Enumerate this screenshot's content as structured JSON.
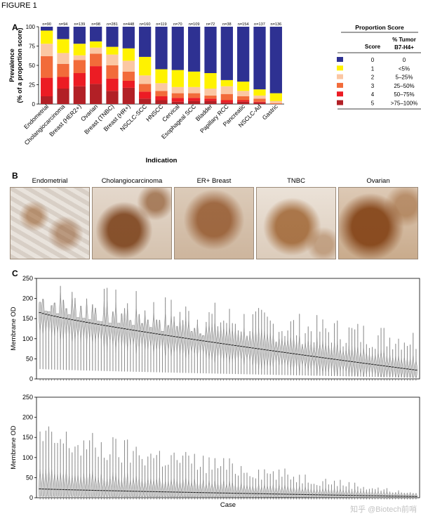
{
  "figure": {
    "title": "FIGURE 1"
  },
  "panels": {
    "a": "A",
    "b": "B",
    "c": "C"
  },
  "chart_data": [
    {
      "type": "bar",
      "stacked": true,
      "title": "",
      "xlabel": "Indication",
      "ylabel": "Prevalence",
      "ylabel2": "(% of a proportion score)",
      "ylim": [
        0,
        100
      ],
      "yticks": [
        0,
        25,
        50,
        75,
        100
      ],
      "categories": [
        "Endometrial",
        "Cholangiocarcinoma",
        "Breast (HER2+)",
        "Ovarian",
        "Breast (TNBC)",
        "Breast (HR+)",
        "NSCLC-SCC",
        "HNSCC",
        "Cervical",
        "Esophageal SCC",
        "Bladder",
        "Papillary RCC",
        "Pancreatic",
        "NSCLC-Ad",
        "Gastric"
      ],
      "n_labels": [
        "n=90",
        "n=94",
        "n=139",
        "n=98",
        "n=281",
        "n=448",
        "n=160",
        "n=119",
        "n=70",
        "n=109",
        "n=72",
        "n=38",
        "n=154",
        "n=137",
        "n=136"
      ],
      "series": [
        {
          "name": "5",
          "color": "#b22026",
          "values": [
            10,
            20,
            23,
            26,
            17,
            21,
            7,
            5,
            3,
            4,
            4,
            2,
            3,
            2,
            0
          ]
        },
        {
          "name": "4",
          "color": "#ec1c24",
          "values": [
            24,
            15,
            17,
            23,
            16,
            9,
            9,
            5,
            5,
            4,
            3,
            3,
            2,
            1,
            0
          ]
        },
        {
          "name": "3",
          "color": "#f26b3a",
          "values": [
            28,
            17,
            17,
            16,
            17,
            12,
            10,
            7,
            6,
            6,
            4,
            8,
            5,
            4,
            1
          ]
        },
        {
          "name": "2",
          "color": "#fbc7a3",
          "values": [
            16,
            14,
            6,
            8,
            14,
            14,
            11,
            10,
            8,
            8,
            9,
            10,
            7,
            4,
            3
          ]
        },
        {
          "name": "1",
          "color": "#fff200",
          "values": [
            17,
            18,
            15,
            8,
            10,
            16,
            24,
            18,
            22,
            20,
            20,
            8,
            12,
            8,
            10
          ]
        },
        {
          "name": "0",
          "color": "#2e3192",
          "values": [
            5,
            16,
            22,
            19,
            26,
            28,
            39,
            55,
            56,
            58,
            60,
            69,
            71,
            81,
            86
          ]
        }
      ],
      "legend": {
        "title": "Proportion Score",
        "col_score": "Score",
        "col_tumor": "% Tumor",
        "col_tumor2": "B7-H4+",
        "rows": [
          {
            "color": "#2e3192",
            "score": "0",
            "pct": "0"
          },
          {
            "color": "#fff200",
            "score": "1",
            "pct": "<5%"
          },
          {
            "color": "#fbc7a3",
            "score": "2",
            "pct": "5–25%"
          },
          {
            "color": "#f26b3a",
            "score": "3",
            "pct": "25–50%"
          },
          {
            "color": "#ec1c24",
            "score": "4",
            "pct": "50–75%"
          },
          {
            "color": "#b22026",
            "score": "5",
            "pct": ">75–100%"
          }
        ]
      }
    },
    {
      "type": "violin",
      "xlabel": "",
      "ylabel": "Membrane OD",
      "ylim": [
        0,
        250
      ],
      "yticks": [
        0,
        50,
        100,
        150,
        200,
        250
      ],
      "n_cases": 130,
      "median_start": 165,
      "median_end": 22,
      "max_start": 240,
      "max_end": 120
    },
    {
      "type": "violin",
      "xlabel": "Case",
      "ylabel": "Membrane OD",
      "ylim": [
        0,
        250
      ],
      "yticks": [
        0,
        50,
        100,
        150,
        200,
        250
      ],
      "n_cases": 130,
      "median_start": 22,
      "median_end": 3,
      "max_start": 180,
      "max_end": 10
    }
  ],
  "ihc_images": [
    "Endometrial",
    "Cholangiocarcinoma",
    "ER+ Breast",
    "TNBC",
    "Ovarian"
  ],
  "watermark": "知乎 @Biotech前哨"
}
